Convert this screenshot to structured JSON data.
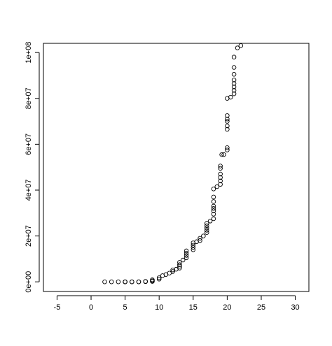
{
  "chart_data": {
    "type": "scatter",
    "title": "",
    "xlabel": "",
    "ylabel": "",
    "xlim": [
      -7,
      32
    ],
    "ylim": [
      -4200000,
      104000000
    ],
    "x_ticks": [
      -5,
      0,
      5,
      10,
      15,
      20,
      25,
      30
    ],
    "x_tick_labels": [
      "-5",
      "0",
      "5",
      "10",
      "15",
      "20",
      "25",
      "30"
    ],
    "y_ticks": [
      0,
      20000000,
      40000000,
      60000000,
      80000000,
      100000000
    ],
    "y_tick_labels": [
      "0e+00",
      "2e+07",
      "4e+07",
      "6e+07",
      "8e+07",
      "1e+08"
    ],
    "grid": false,
    "marker": "open-circle",
    "colors": {
      "axis": "#000000",
      "points": "#000000",
      "background": "#ffffff"
    },
    "series": [
      {
        "points": [
          [
            2,
            0
          ],
          [
            3,
            0
          ],
          [
            4,
            0
          ],
          [
            5,
            0
          ],
          [
            5,
            0
          ],
          [
            5,
            0
          ],
          [
            6,
            0
          ],
          [
            6,
            0
          ],
          [
            7,
            0
          ],
          [
            7,
            0
          ],
          [
            8,
            100000
          ],
          [
            8,
            200000
          ],
          [
            9,
            200000
          ],
          [
            9,
            500000
          ],
          [
            9,
            900000
          ],
          [
            10,
            1200000
          ],
          [
            10,
            1800000
          ],
          [
            10.5,
            2700000
          ],
          [
            11,
            3200000
          ],
          [
            11.5,
            3800000
          ],
          [
            12,
            4500000
          ],
          [
            12,
            5200000
          ],
          [
            12.5,
            5500000
          ],
          [
            13,
            6000000
          ],
          [
            13,
            6800000
          ],
          [
            13,
            7500000
          ],
          [
            13,
            8500000
          ],
          [
            13.5,
            9500000
          ],
          [
            14,
            10500000
          ],
          [
            14,
            11500000
          ],
          [
            14,
            12500000
          ],
          [
            14,
            13500000
          ],
          [
            15,
            14000000
          ],
          [
            15,
            15000000
          ],
          [
            15,
            16000000
          ],
          [
            15,
            17000000
          ],
          [
            15.5,
            17500000
          ],
          [
            16,
            18000000
          ],
          [
            16,
            19000000
          ],
          [
            16.5,
            20000000
          ],
          [
            17,
            21500000
          ],
          [
            17,
            22500000
          ],
          [
            17,
            23500000
          ],
          [
            17,
            24500000
          ],
          [
            17,
            25500000
          ],
          [
            17.5,
            26500000
          ],
          [
            18,
            27500000
          ],
          [
            18,
            29500000
          ],
          [
            18,
            31000000
          ],
          [
            18,
            32000000
          ],
          [
            18,
            33000000
          ],
          [
            18,
            35000000
          ],
          [
            18,
            37000000
          ],
          [
            18,
            40500000
          ],
          [
            18.5,
            41500000
          ],
          [
            19,
            42500000
          ],
          [
            19,
            44000000
          ],
          [
            19,
            45500000
          ],
          [
            19,
            47000000
          ],
          [
            19,
            49500000
          ],
          [
            19,
            50500000
          ],
          [
            19.2,
            55500000
          ],
          [
            19.5,
            55500000
          ],
          [
            20,
            57500000
          ],
          [
            20,
            58500000
          ],
          [
            20,
            66500000
          ],
          [
            20,
            68000000
          ],
          [
            20,
            70000000
          ],
          [
            20,
            71000000
          ],
          [
            20,
            72500000
          ],
          [
            20,
            80000000
          ],
          [
            20.5,
            80500000
          ],
          [
            21,
            82000000
          ],
          [
            21,
            83500000
          ],
          [
            21,
            85000000
          ],
          [
            21,
            86500000
          ],
          [
            21,
            88000000
          ],
          [
            21,
            90500000
          ],
          [
            21,
            93500000
          ],
          [
            21,
            98000000
          ],
          [
            21.5,
            102000000
          ],
          [
            22,
            103000000
          ]
        ]
      }
    ]
  }
}
